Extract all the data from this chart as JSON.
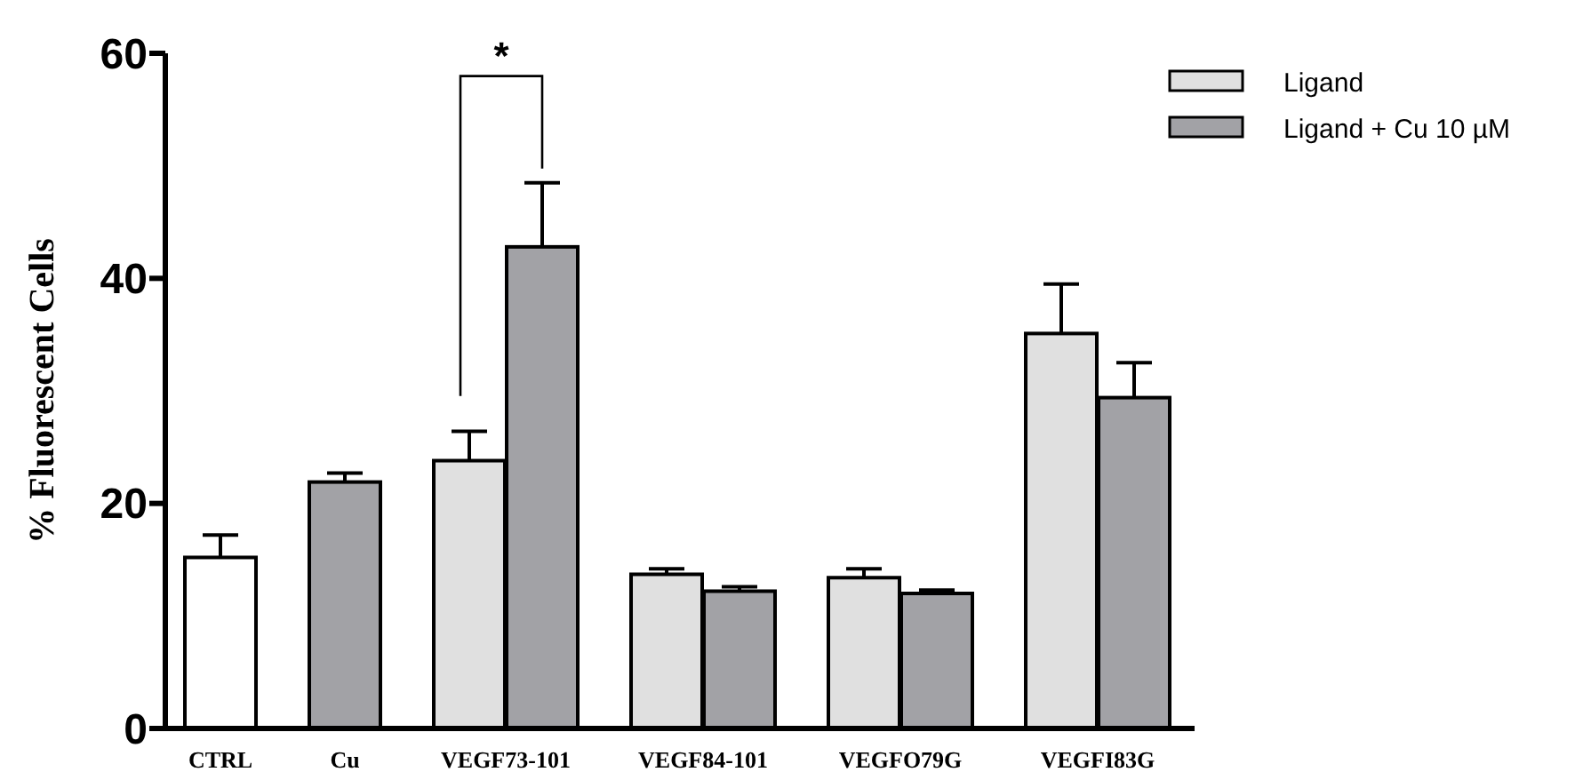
{
  "chart_data": {
    "type": "bar",
    "ylabel": "% Fluorescent Cells",
    "categories": [
      "CTRL",
      "Cu",
      "VEGF73-101",
      "VEGF84-101",
      "VEGFO79G",
      "VEGFI83G"
    ],
    "series": [
      {
        "name": "Ligand",
        "color": "#e0e0e0",
        "colors": [
          "#ffffff",
          null,
          "#e0e0e0",
          "#e0e0e0",
          "#e0e0e0",
          "#e0e0e0"
        ],
        "values": [
          15.2,
          null,
          23.8,
          13.7,
          13.4,
          35.1
        ],
        "errors": [
          [
            15.2,
            17.2
          ],
          null,
          [
            23.8,
            26.4
          ],
          [
            13.7,
            14.2
          ],
          [
            13.4,
            14.2
          ],
          [
            35.1,
            39.5
          ]
        ]
      },
      {
        "name": "Ligand + Cu 10 µM",
        "color": "#a2a2a6",
        "values": [
          null,
          21.9,
          42.8,
          12.2,
          12.0,
          29.4
        ],
        "errors": [
          null,
          [
            21.9,
            22.7
          ],
          [
            42.8,
            48.5
          ],
          [
            12.2,
            12.6
          ],
          [
            12.0,
            12.3
          ],
          [
            29.4,
            32.5
          ]
        ]
      }
    ],
    "ylim": [
      0,
      60
    ],
    "yticks": [
      0,
      20,
      40,
      60
    ],
    "grid": false,
    "legend": "top right",
    "annotations": [
      "*"
    ]
  }
}
